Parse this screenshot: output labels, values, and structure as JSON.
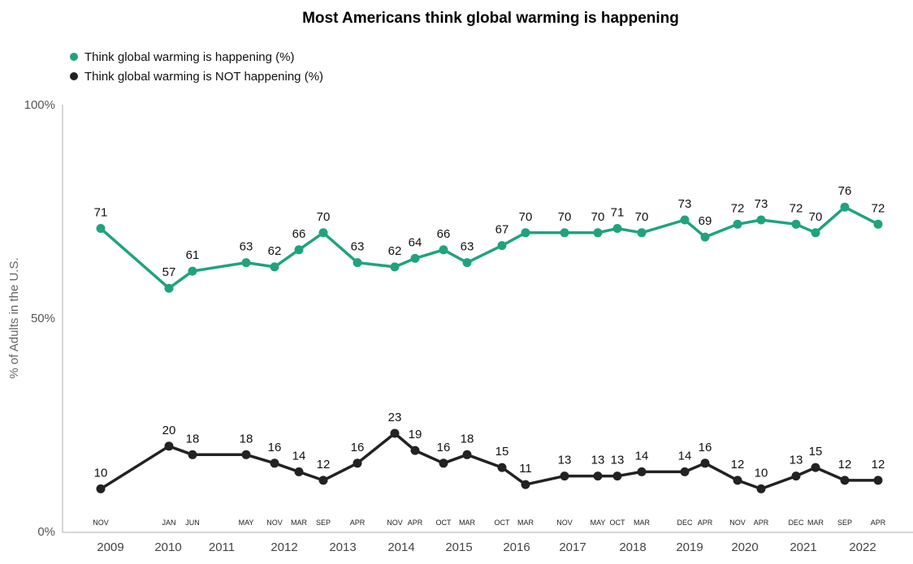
{
  "chart_data": {
    "type": "line",
    "title": "Most Americans think global warming is happening",
    "ylabel": "% of Adults in the U.S.",
    "xlabel": "",
    "ylim": [
      0,
      100
    ],
    "yticks": [
      "0%",
      "50%",
      "100%"
    ],
    "ytick_values": [
      0,
      50,
      100
    ],
    "grid": false,
    "legend_position": "top-left",
    "colors": {
      "happening": "#1fa37f",
      "not_happening": "#222222",
      "axis": "#c8c8c8"
    },
    "x_month_labels": [
      "NOV",
      "JAN",
      "JUN",
      "MAY",
      "NOV",
      "MAR",
      "SEP",
      "APR",
      "NOV",
      "APR",
      "OCT",
      "MAR",
      "OCT",
      "MAR",
      "NOV",
      "MAY",
      "OCT",
      "MAR",
      "DEC",
      "APR",
      "NOV",
      "APR",
      "DEC",
      "MAR",
      "SEP",
      "APR"
    ],
    "x_dates": [
      "2008-11",
      "2010-01",
      "2010-06",
      "2011-05",
      "2011-11",
      "2012-03",
      "2012-09",
      "2013-04",
      "2013-11",
      "2014-04",
      "2014-10",
      "2015-03",
      "2015-10",
      "2016-03",
      "2016-11",
      "2017-05",
      "2017-10",
      "2018-03",
      "2018-12",
      "2019-04",
      "2019-11",
      "2020-04",
      "2020-12",
      "2021-03",
      "2021-09",
      "2022-04"
    ],
    "year_labels": [
      "2009",
      "2010",
      "2011",
      "2012",
      "2013",
      "2014",
      "2015",
      "2016",
      "2017",
      "2018",
      "2019",
      "2020",
      "2021",
      "2022"
    ],
    "series": [
      {
        "name": "Think global warming is happening (%)",
        "key": "happening",
        "values": [
          71,
          57,
          61,
          63,
          62,
          66,
          70,
          63,
          62,
          64,
          66,
          63,
          67,
          70,
          70,
          70,
          71,
          70,
          73,
          69,
          72,
          73,
          72,
          70,
          76,
          72
        ]
      },
      {
        "name": "Think global warming is NOT happening (%)",
        "key": "not_happening",
        "values": [
          10,
          20,
          18,
          18,
          16,
          14,
          12,
          16,
          23,
          19,
          16,
          18,
          15,
          11,
          13,
          13,
          13,
          14,
          14,
          16,
          12,
          10,
          13,
          15,
          12,
          12
        ]
      }
    ]
  }
}
